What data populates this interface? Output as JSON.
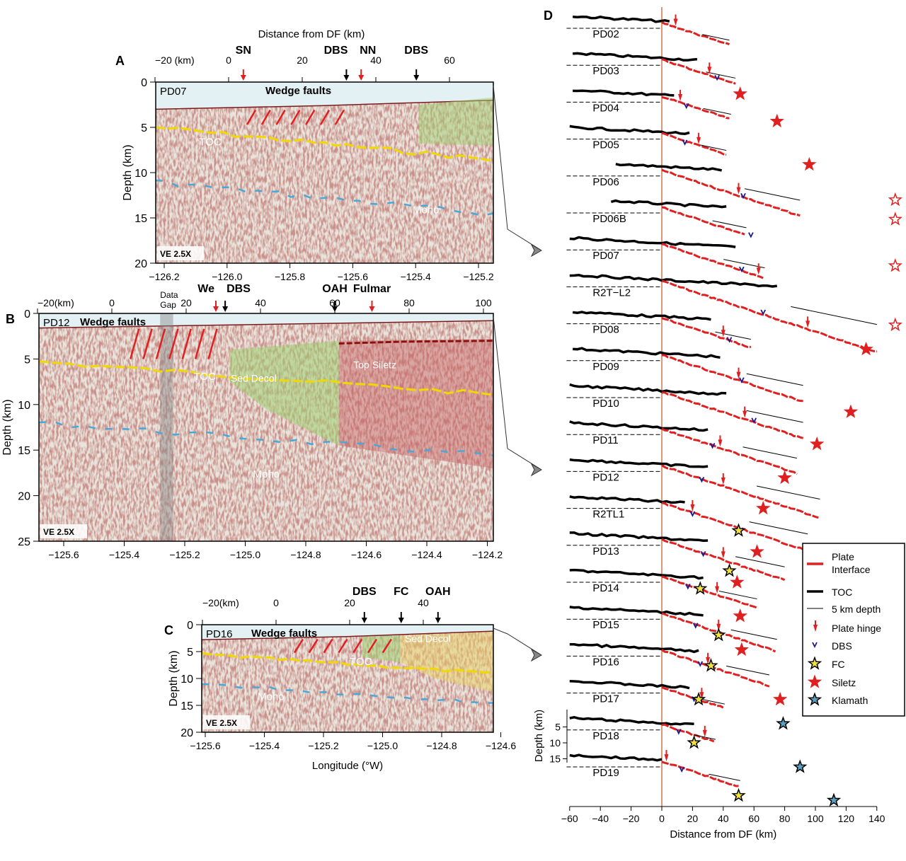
{
  "top_title": "Distance from DF (km)",
  "panels": [
    {
      "letter": "A",
      "profile": "PD07",
      "ve": "VE 2.5X",
      "top_ticks": [
        "−20 (km)",
        "0",
        "20",
        "40",
        "60"
      ],
      "top_tick_values": [
        -20,
        0,
        20,
        40,
        60
      ],
      "markers": [
        {
          "label": "SN",
          "km": 4,
          "color": "#e02020"
        },
        {
          "label": "DBS",
          "km": 32,
          "color": "#000000"
        },
        {
          "label": "NN",
          "km": 36,
          "color": "#e02020"
        },
        {
          "label": "DBS",
          "km": 51,
          "color": "#000000"
        }
      ],
      "annotations": {
        "wedge": "Wedge faults",
        "toc": "TOC",
        "moho": "Moho"
      },
      "depth_ticks": [
        0,
        5,
        10,
        15,
        20
      ],
      "lon_ticks": [
        "−126.2",
        "−126.0",
        "−125.8",
        "−125.6",
        "−125.4",
        "−125.2"
      ],
      "ylabel": "Depth (km)"
    },
    {
      "letter": "B",
      "profile": "PD12",
      "ve": "VE 2.5X",
      "top_ticks": [
        "−20(km)",
        "0",
        "20",
        "40",
        "60",
        "80",
        "100"
      ],
      "top_tick_values": [
        -20,
        0,
        20,
        40,
        60,
        80,
        100
      ],
      "markers": [
        {
          "label": "We",
          "km": 28,
          "color": "#e02020"
        },
        {
          "label": "DBS",
          "km": 30.5,
          "color": "#000000"
        },
        {
          "label": "OAH",
          "km": 60,
          "color": "#000000"
        },
        {
          "label": "Fulmar",
          "km": 70,
          "color": "#e02020"
        }
      ],
      "data_gap": [
        "Data",
        "Gap"
      ],
      "annotations": {
        "wedge": "Wedge faults",
        "sed": "Sed Decol",
        "toc": "TOC",
        "siletz": "Top Siletz",
        "moho": "Moho"
      },
      "depth_ticks": [
        0,
        5,
        10,
        15,
        20,
        25
      ],
      "lon_ticks": [
        "−125.6",
        "−125.4",
        "−125.2",
        "−125.0",
        "−124.8",
        "−124.6",
        "−124.4",
        "−124.2"
      ],
      "ylabel": "Depth (km)"
    },
    {
      "letter": "C",
      "profile": "PD16",
      "ve": "VE 2.5X",
      "top_ticks": [
        "−20(km)",
        "0",
        "20",
        "40"
      ],
      "top_tick_values": [
        -20,
        0,
        20,
        40
      ],
      "markers": [
        {
          "label": "DBS",
          "km": 24,
          "color": "#000000"
        },
        {
          "label": "FC",
          "km": 34,
          "color": "#000000"
        },
        {
          "label": "OAH",
          "km": 44,
          "color": "#000000"
        }
      ],
      "annotations": {
        "wedge": "Wedge faults",
        "sed": "Sed Decol",
        "toc": "TOC",
        "moho": "Moho"
      },
      "depth_ticks": [
        0,
        5,
        10,
        15,
        20
      ],
      "lon_ticks": [
        "−125.6",
        "−125.4",
        "−125.2",
        "−125.0",
        "−124.8",
        "−124.6"
      ],
      "ylabel": "Depth (km)",
      "xlabel": "Longitude (°W)"
    }
  ],
  "chart_data": {
    "type": "line",
    "title": "D",
    "xlabel": "Distance from DF (km)",
    "ylabel": "Depth (km)",
    "xlim": [
      -60,
      140
    ],
    "x_ticks": [
      -60,
      -40,
      -20,
      0,
      20,
      40,
      60,
      80,
      100,
      120,
      140
    ],
    "y_ticks": [
      5,
      10,
      15
    ],
    "legend": {
      "placement": "right",
      "entries": [
        "Plate Interface",
        "TOC",
        "5 km depth",
        "Plate hinge",
        "DBS",
        "FC",
        "Siletz",
        "Klamath"
      ],
      "colors": {
        "interface": "#e02020",
        "toc": "#000000",
        "dbs": "#1a1a8c",
        "siletz": "#e02020",
        "fc_fill": "#f0e040",
        "klamath_fill": "#5aa0c0"
      }
    },
    "profiles": [
      {
        "name": "PD02",
        "start": -58,
        "hinge": 9,
        "end": 44
      },
      {
        "name": "PD03",
        "start": -58,
        "hinge": 31,
        "dbs": 36,
        "end": 48,
        "siletz": [
          51,
          9
        ]
      },
      {
        "name": "PD04",
        "start": -58,
        "hinge": 12,
        "dbs": 16,
        "end": 45,
        "siletz": [
          75,
          6
        ]
      },
      {
        "name": "PD05",
        "start": -60,
        "hinge": 24,
        "dbs": 15,
        "end": 42,
        "siletz": [
          96,
          8
        ]
      },
      {
        "name": "PD06",
        "start": -30,
        "hinge": 50,
        "dbs": 53,
        "end": 90,
        "siletz_open": [
          152,
          7.5
        ]
      },
      {
        "name": "PD06B",
        "start": -33,
        "dbs": 58,
        "end": 55,
        "siletz_open": [
          152,
          2
        ]
      },
      {
        "name": "PD07",
        "start": -60,
        "hinge": 63,
        "dbs": 52,
        "end": 67,
        "siletz_open": [
          152,
          5
        ]
      },
      {
        "name": "R2T−L2",
        "start": -60,
        "hinge": 95,
        "dbs": 66,
        "end": 140,
        "siletz_open": [
          152,
          12
        ]
      },
      {
        "name": "PD08",
        "start": -58,
        "hinge": 40,
        "dbs": 44,
        "end": 58,
        "siletz": [
          133,
          8
        ]
      },
      {
        "name": "PD09",
        "start": -58,
        "hinge": 50,
        "dbs": 52,
        "end": 92
      },
      {
        "name": "PD10",
        "start": -60,
        "hinge": 54,
        "dbs": 60,
        "end": 92,
        "siletz": [
          123,
          4.5
        ]
      },
      {
        "name": "PD11",
        "start": -60,
        "hinge": 38,
        "dbs": 33,
        "end": 88,
        "siletz": [
          101,
          3
        ]
      },
      {
        "name": "PD12",
        "start": -60,
        "hinge": 40,
        "dbs": 26,
        "end": 103,
        "siletz": [
          80,
          2
        ]
      },
      {
        "name": "R2TL1",
        "start": -60,
        "hinge": 20,
        "dbs": 20,
        "end": 95,
        "siletz": [
          66,
          0
        ],
        "fc": [
          50,
          7
        ]
      },
      {
        "name": "PD13",
        "start": -60,
        "hinge": 40,
        "dbs": 27,
        "end": 80,
        "siletz": [
          62,
          2
        ],
        "fc": [
          44,
          8
        ]
      },
      {
        "name": "PD14",
        "start": -60,
        "hinge": 36,
        "dbs": 17,
        "end": 62,
        "siletz": [
          49,
          0
        ],
        "fc": [
          25,
          2
        ]
      },
      {
        "name": "PD15",
        "start": -60,
        "hinge": 37,
        "dbs": 22,
        "end": 75,
        "siletz": [
          51,
          -1
        ],
        "fc": [
          37,
          5
        ]
      },
      {
        "name": "PD16",
        "start": -60,
        "hinge": 30,
        "dbs": 25,
        "end": 70,
        "siletz": [
          52,
          -2
        ],
        "fc": [
          32,
          3
        ]
      },
      {
        "name": "PD17",
        "start": -60,
        "hinge": 26,
        "dbs": 21,
        "end": 41,
        "siletz": [
          77,
          2
        ],
        "fc": [
          24,
          2
        ]
      },
      {
        "name": "PD18",
        "start": -60,
        "hinge": 28,
        "dbs": 11,
        "end": 35,
        "fc": [
          21,
          4
        ],
        "klamath": [
          79,
          -2
        ]
      },
      {
        "name": "PD19",
        "start": -60,
        "hinge": 3,
        "dbs": 13,
        "end": 51,
        "fc": [
          50,
          9
        ],
        "klamath2": [
          112,
          10.5
        ],
        "klamath": [
          90,
          0
        ]
      }
    ]
  }
}
